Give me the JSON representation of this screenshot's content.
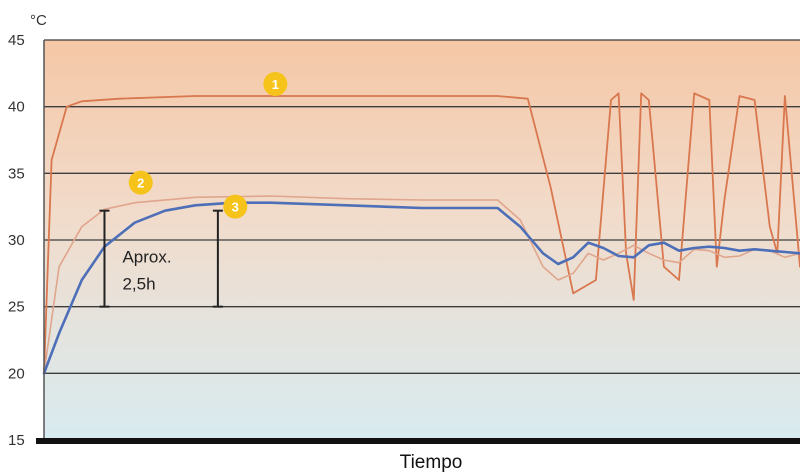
{
  "chart_data": {
    "type": "line",
    "ylabel": "°C",
    "xlabel": "Tiempo",
    "ylim": [
      15,
      45
    ],
    "yticks": [
      15,
      20,
      25,
      30,
      35,
      40,
      45
    ],
    "grid": true,
    "colors": {
      "background_top": "#f5c7a6",
      "background_bottom": "#d8ebf0",
      "series_1": "#d9774e",
      "series_2": "#e0a58c",
      "series_3": "#4d6fb8",
      "marker": "#f6c31b"
    },
    "series": [
      {
        "marker": "1",
        "x": [
          0,
          1,
          3,
          5,
          10,
          20,
          40,
          60,
          64,
          67,
          70,
          73,
          75,
          76,
          77,
          78,
          79,
          80,
          82,
          84,
          86,
          88,
          89,
          90,
          92,
          94,
          96,
          97,
          98,
          100
        ],
        "y": [
          20,
          36,
          40,
          40.4,
          40.6,
          40.8,
          40.8,
          40.8,
          40.6,
          34,
          26,
          27,
          40.5,
          41,
          29,
          25.5,
          41,
          40.5,
          28,
          27,
          41,
          40.5,
          28,
          33,
          40.8,
          40.5,
          31,
          29,
          40.8,
          28
        ]
      },
      {
        "marker": "2",
        "x": [
          0,
          2,
          5,
          8,
          12,
          20,
          30,
          40,
          50,
          60,
          63,
          66,
          68,
          70,
          72,
          74,
          76,
          78,
          80,
          82,
          84,
          86,
          88,
          90,
          92,
          94,
          96,
          98,
          100
        ],
        "y": [
          20,
          28,
          31,
          32.3,
          32.8,
          33.2,
          33.3,
          33.1,
          33,
          33,
          31.5,
          28,
          27,
          27.5,
          29,
          28.5,
          29,
          29.6,
          29,
          28.5,
          28.3,
          29.3,
          29.2,
          28.7,
          28.8,
          29.3,
          29.2,
          28.7,
          29
        ]
      },
      {
        "marker": "3",
        "x": [
          0,
          2,
          5,
          8,
          12,
          16,
          20,
          25,
          30,
          40,
          50,
          60,
          63,
          66,
          68,
          70,
          72,
          74,
          76,
          78,
          80,
          82,
          84,
          86,
          88,
          90,
          92,
          94,
          96,
          98,
          100
        ],
        "y": [
          20,
          23,
          27,
          29.5,
          31.3,
          32.2,
          32.6,
          32.8,
          32.8,
          32.6,
          32.4,
          32.4,
          31,
          29,
          28.2,
          28.7,
          29.8,
          29.4,
          28.8,
          28.7,
          29.6,
          29.8,
          29.2,
          29.4,
          29.5,
          29.4,
          29.2,
          29.3,
          29.2,
          29.1,
          29
        ]
      }
    ],
    "annotation": {
      "text_line1": "Aprox.",
      "text_line2": "2,5h",
      "x_start": 8,
      "x_end": 23,
      "y_low": 25,
      "y_high_start": 32.2,
      "y_high_end": 32.2
    }
  }
}
